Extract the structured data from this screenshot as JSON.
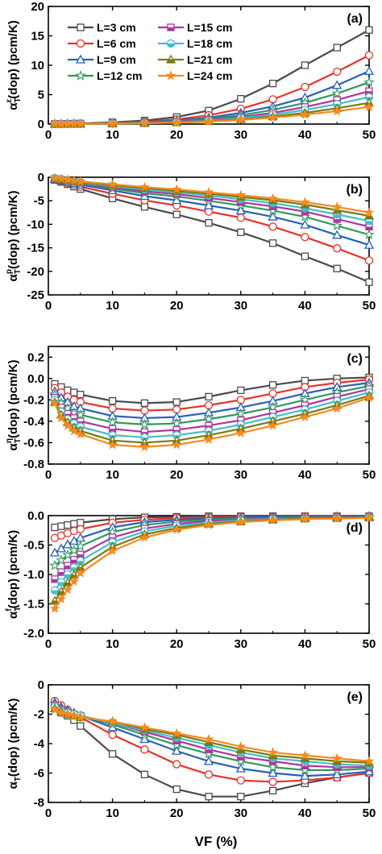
{
  "figure": {
    "xlabel": "VF (%)"
  },
  "series_style": [
    {
      "name": "L=3 cm",
      "color": "#4a4a4a",
      "marker": "square-open"
    },
    {
      "name": "L=6 cm",
      "color": "#e8322b",
      "marker": "circle-open"
    },
    {
      "name": "L=9 cm",
      "color": "#2660b8",
      "marker": "triangle-up-open"
    },
    {
      "name": "L=12 cm",
      "color": "#2f9a5c",
      "marker": "star-open"
    },
    {
      "name": "L=15 cm",
      "color": "#b0359c",
      "marker": "square-half"
    },
    {
      "name": "L=18 cm",
      "color": "#3fbfcf",
      "marker": "circle-half"
    },
    {
      "name": "L=21 cm",
      "color": "#7a7a12",
      "marker": "triangle-up-half"
    },
    {
      "name": "L=24 cm",
      "color": "#f58a1f",
      "marker": "star-half"
    }
  ],
  "chart_data": [
    {
      "type": "line",
      "panel": "(a)",
      "ylabel": {
        "main": "α",
        "sup": "ε",
        "sub": "T",
        "rest": "(dop) (pcm/K)"
      },
      "x": [
        1,
        2,
        3,
        4,
        5,
        10,
        15,
        20,
        25,
        30,
        35,
        40,
        45,
        50
      ],
      "xlim": [
        0,
        50
      ],
      "ylim": [
        0,
        20
      ],
      "xticks": [
        0,
        10,
        20,
        30,
        40,
        50
      ],
      "yticks": [
        0,
        5,
        10,
        15,
        20
      ],
      "legend": "top-left, two columns",
      "series": [
        {
          "name": "L=3 cm",
          "values": [
            0.02,
            0.03,
            0.05,
            0.07,
            0.1,
            0.3,
            0.6,
            1.2,
            2.3,
            4.3,
            6.9,
            10.0,
            13.0,
            16.0
          ]
        },
        {
          "name": "L=6 cm",
          "values": [
            0.02,
            0.03,
            0.04,
            0.06,
            0.08,
            0.2,
            0.4,
            0.8,
            1.5,
            2.6,
            4.2,
            6.3,
            8.9,
            11.7
          ]
        },
        {
          "name": "L=9 cm",
          "values": [
            0.02,
            0.03,
            0.04,
            0.05,
            0.07,
            0.18,
            0.3,
            0.6,
            1.1,
            1.9,
            3.0,
            4.5,
            6.6,
            9.0
          ]
        },
        {
          "name": "L=12 cm",
          "values": [
            0.01,
            0.02,
            0.03,
            0.04,
            0.06,
            0.15,
            0.25,
            0.5,
            0.9,
            1.5,
            2.4,
            3.6,
            5.2,
            7.1
          ]
        },
        {
          "name": "L=15 cm",
          "values": [
            0.01,
            0.02,
            0.03,
            0.04,
            0.05,
            0.12,
            0.2,
            0.4,
            0.7,
            1.2,
            1.9,
            2.9,
            4.1,
            5.6
          ]
        },
        {
          "name": "L=18 cm",
          "values": [
            0.01,
            0.02,
            0.02,
            0.03,
            0.04,
            0.1,
            0.18,
            0.33,
            0.6,
            1.0,
            1.6,
            2.4,
            3.4,
            4.6
          ]
        },
        {
          "name": "L=21 cm",
          "values": [
            0.01,
            0.01,
            0.02,
            0.03,
            0.04,
            0.08,
            0.15,
            0.28,
            0.5,
            0.8,
            1.3,
            1.9,
            2.7,
            3.6
          ]
        },
        {
          "name": "L=24 cm",
          "values": [
            0.01,
            0.01,
            0.02,
            0.02,
            0.03,
            0.07,
            0.13,
            0.23,
            0.4,
            0.7,
            1.1,
            1.6,
            2.2,
            2.9
          ]
        }
      ]
    },
    {
      "type": "line",
      "panel": "(b)",
      "ylabel": {
        "main": "α",
        "sup": "p",
        "sub": "T",
        "rest": "(dop) (pcm/K)"
      },
      "x": [
        1,
        2,
        3,
        4,
        5,
        10,
        15,
        20,
        25,
        30,
        35,
        40,
        45,
        50
      ],
      "xlim": [
        0,
        50
      ],
      "ylim": [
        -25,
        0
      ],
      "xticks": [
        0,
        10,
        20,
        30,
        40,
        50
      ],
      "yticks": [
        0,
        -5,
        -10,
        -15,
        -20,
        -25
      ],
      "series": [
        {
          "name": "L=3 cm",
          "values": [
            -0.6,
            -1.0,
            -1.5,
            -2.0,
            -2.5,
            -4.5,
            -6.3,
            -7.9,
            -9.7,
            -11.7,
            -14.0,
            -16.8,
            -19.4,
            -22.3
          ]
        },
        {
          "name": "L=6 cm",
          "values": [
            -0.5,
            -0.8,
            -1.2,
            -1.6,
            -2.0,
            -3.5,
            -4.9,
            -6.0,
            -7.3,
            -8.6,
            -10.5,
            -12.7,
            -15.1,
            -17.7
          ]
        },
        {
          "name": "L=9 cm",
          "values": [
            -0.4,
            -0.7,
            -1.0,
            -1.3,
            -1.6,
            -2.8,
            -4.0,
            -4.9,
            -6.0,
            -7.1,
            -8.4,
            -10.1,
            -12.3,
            -14.4
          ]
        },
        {
          "name": "L=12 cm",
          "values": [
            -0.3,
            -0.6,
            -0.9,
            -1.1,
            -1.4,
            -2.4,
            -3.4,
            -4.1,
            -5.0,
            -6.0,
            -7.1,
            -8.4,
            -10.3,
            -12.2
          ]
        },
        {
          "name": "L=15 cm",
          "values": [
            -0.3,
            -0.5,
            -0.8,
            -1.0,
            -1.2,
            -2.1,
            -3.0,
            -3.6,
            -4.4,
            -5.3,
            -6.2,
            -7.3,
            -8.9,
            -10.5
          ]
        },
        {
          "name": "L=18 cm",
          "values": [
            -0.2,
            -0.4,
            -0.7,
            -0.9,
            -1.1,
            -1.9,
            -2.6,
            -3.2,
            -3.9,
            -4.7,
            -5.5,
            -6.6,
            -7.9,
            -9.3
          ]
        },
        {
          "name": "L=21 cm",
          "values": [
            -0.2,
            -0.4,
            -0.6,
            -0.8,
            -1.0,
            -1.7,
            -2.3,
            -2.9,
            -3.5,
            -4.2,
            -4.9,
            -5.8,
            -7.0,
            -8.2
          ]
        },
        {
          "name": "L=24 cm",
          "values": [
            -0.2,
            -0.3,
            -0.5,
            -0.7,
            -0.9,
            -1.5,
            -2.1,
            -2.6,
            -3.2,
            -3.8,
            -4.5,
            -5.3,
            -6.3,
            -7.5
          ]
        }
      ]
    },
    {
      "type": "line",
      "panel": "(c)",
      "ylabel": {
        "main": "α",
        "sup": "η",
        "sub": "T",
        "rest": "(dop) (pcm/K)"
      },
      "x": [
        1,
        2,
        3,
        4,
        5,
        10,
        15,
        20,
        25,
        30,
        35,
        40,
        45,
        50
      ],
      "xlim": [
        0,
        50
      ],
      "ylim": [
        -0.8,
        0.3
      ],
      "xticks": [
        0,
        10,
        20,
        30,
        40,
        50
      ],
      "yticks": [
        0.2,
        0.0,
        -0.2,
        -0.4,
        -0.6,
        -0.8
      ],
      "series": [
        {
          "name": "L=3 cm",
          "values": [
            -0.05,
            -0.08,
            -0.11,
            -0.13,
            -0.15,
            -0.21,
            -0.23,
            -0.22,
            -0.17,
            -0.11,
            -0.06,
            -0.02,
            0.0,
            0.01
          ]
        },
        {
          "name": "L=6 cm",
          "values": [
            -0.09,
            -0.13,
            -0.17,
            -0.2,
            -0.22,
            -0.28,
            -0.3,
            -0.29,
            -0.25,
            -0.2,
            -0.14,
            -0.08,
            -0.04,
            -0.01
          ]
        },
        {
          "name": "L=9 cm",
          "values": [
            -0.12,
            -0.18,
            -0.22,
            -0.26,
            -0.28,
            -0.35,
            -0.37,
            -0.36,
            -0.32,
            -0.27,
            -0.21,
            -0.14,
            -0.08,
            -0.04
          ]
        },
        {
          "name": "L=12 cm",
          "values": [
            -0.15,
            -0.23,
            -0.28,
            -0.32,
            -0.34,
            -0.41,
            -0.43,
            -0.42,
            -0.38,
            -0.33,
            -0.27,
            -0.2,
            -0.13,
            -0.07
          ]
        },
        {
          "name": "L=15 cm",
          "values": [
            -0.18,
            -0.27,
            -0.33,
            -0.37,
            -0.4,
            -0.47,
            -0.5,
            -0.48,
            -0.44,
            -0.39,
            -0.32,
            -0.25,
            -0.17,
            -0.1
          ]
        },
        {
          "name": "L=18 cm",
          "values": [
            -0.2,
            -0.31,
            -0.38,
            -0.42,
            -0.45,
            -0.53,
            -0.55,
            -0.53,
            -0.49,
            -0.43,
            -0.36,
            -0.29,
            -0.21,
            -0.13
          ]
        },
        {
          "name": "L=21 cm",
          "values": [
            -0.22,
            -0.34,
            -0.41,
            -0.46,
            -0.49,
            -0.58,
            -0.6,
            -0.58,
            -0.53,
            -0.47,
            -0.4,
            -0.33,
            -0.25,
            -0.16
          ]
        },
        {
          "name": "L=24 cm",
          "values": [
            -0.23,
            -0.37,
            -0.44,
            -0.49,
            -0.52,
            -0.62,
            -0.64,
            -0.62,
            -0.57,
            -0.51,
            -0.44,
            -0.36,
            -0.28,
            -0.18
          ]
        }
      ]
    },
    {
      "type": "line",
      "panel": "(d)",
      "ylabel": {
        "main": "α",
        "sup": "f",
        "sub": "T",
        "rest": "(dop) (pcm/K)"
      },
      "x": [
        1,
        2,
        3,
        4,
        5,
        10,
        15,
        20,
        25,
        30,
        35,
        40,
        45,
        50
      ],
      "xlim": [
        0,
        50
      ],
      "ylim": [
        -2.0,
        0.0
      ],
      "xticks": [
        0,
        10,
        20,
        30,
        40,
        50
      ],
      "yticks": [
        0.0,
        -0.5,
        -1.0,
        -1.5,
        -2.0
      ],
      "series": [
        {
          "name": "L=3 cm",
          "values": [
            -0.2,
            -0.18,
            -0.16,
            -0.14,
            -0.12,
            -0.06,
            -0.03,
            -0.02,
            -0.01,
            -0.01,
            -0.01,
            -0.01,
            -0.01,
            -0.01
          ]
        },
        {
          "name": "L=6 cm",
          "values": [
            -0.38,
            -0.34,
            -0.3,
            -0.26,
            -0.23,
            -0.12,
            -0.07,
            -0.04,
            -0.03,
            -0.02,
            -0.02,
            -0.01,
            -0.01,
            -0.01
          ]
        },
        {
          "name": "L=9 cm",
          "values": [
            -0.63,
            -0.56,
            -0.49,
            -0.43,
            -0.38,
            -0.2,
            -0.11,
            -0.07,
            -0.05,
            -0.03,
            -0.02,
            -0.02,
            -0.02,
            -0.01
          ]
        },
        {
          "name": "L=12 cm",
          "values": [
            -0.85,
            -0.76,
            -0.67,
            -0.59,
            -0.52,
            -0.28,
            -0.16,
            -0.1,
            -0.07,
            -0.05,
            -0.04,
            -0.03,
            -0.02,
            -0.02
          ]
        },
        {
          "name": "L=15 cm",
          "values": [
            -1.08,
            -0.96,
            -0.85,
            -0.75,
            -0.66,
            -0.37,
            -0.22,
            -0.14,
            -0.09,
            -0.07,
            -0.05,
            -0.04,
            -0.03,
            -0.02
          ]
        },
        {
          "name": "L=18 cm",
          "values": [
            -1.27,
            -1.13,
            -1.0,
            -0.88,
            -0.77,
            -0.45,
            -0.27,
            -0.17,
            -0.12,
            -0.08,
            -0.06,
            -0.05,
            -0.04,
            -0.03
          ]
        },
        {
          "name": "L=21 cm",
          "values": [
            -1.45,
            -1.29,
            -1.14,
            -1.01,
            -0.88,
            -0.53,
            -0.32,
            -0.21,
            -0.14,
            -0.1,
            -0.07,
            -0.05,
            -0.04,
            -0.03
          ]
        },
        {
          "name": "L=24 cm",
          "values": [
            -1.58,
            -1.42,
            -1.26,
            -1.12,
            -0.98,
            -0.6,
            -0.37,
            -0.24,
            -0.16,
            -0.11,
            -0.08,
            -0.06,
            -0.05,
            -0.04
          ]
        }
      ]
    },
    {
      "type": "line",
      "panel": "(e)",
      "ylabel": {
        "main": "α",
        "sup": "",
        "sub": "T",
        "rest": "(dop) (pcm/K)"
      },
      "x": [
        1,
        2,
        3,
        4,
        5,
        10,
        15,
        20,
        25,
        30,
        35,
        40,
        45,
        50
      ],
      "xlim": [
        0,
        50
      ],
      "ylim": [
        -8,
        0
      ],
      "xticks": [
        0,
        10,
        20,
        30,
        40,
        50
      ],
      "yticks": [
        0,
        -2,
        -4,
        -6,
        -8
      ],
      "series": [
        {
          "name": "L=3 cm",
          "values": [
            -1.6,
            -1.9,
            -2.1,
            -2.4,
            -2.8,
            -4.7,
            -6.1,
            -7.1,
            -7.6,
            -7.6,
            -7.2,
            -6.7,
            -6.3,
            -6.0
          ]
        },
        {
          "name": "L=6 cm",
          "values": [
            -1.1,
            -1.4,
            -1.7,
            -2.0,
            -2.2,
            -3.4,
            -4.4,
            -5.4,
            -6.1,
            -6.5,
            -6.6,
            -6.5,
            -6.3,
            -6.0
          ]
        },
        {
          "name": "L=9 cm",
          "values": [
            -1.2,
            -1.5,
            -1.7,
            -1.9,
            -2.1,
            -2.9,
            -3.7,
            -4.5,
            -5.2,
            -5.7,
            -6.0,
            -6.2,
            -6.1,
            -5.9
          ]
        },
        {
          "name": "L=12 cm",
          "values": [
            -1.3,
            -1.6,
            -1.8,
            -2.0,
            -2.1,
            -2.7,
            -3.4,
            -4.1,
            -4.7,
            -5.2,
            -5.6,
            -5.8,
            -5.8,
            -5.7
          ]
        },
        {
          "name": "L=15 cm",
          "values": [
            -1.4,
            -1.7,
            -1.9,
            -2.0,
            -2.1,
            -2.6,
            -3.2,
            -3.8,
            -4.4,
            -4.9,
            -5.2,
            -5.5,
            -5.6,
            -5.6
          ]
        },
        {
          "name": "L=18 cm",
          "values": [
            -1.5,
            -1.8,
            -1.9,
            -2.0,
            -2.1,
            -2.6,
            -3.1,
            -3.6,
            -4.1,
            -4.6,
            -5.0,
            -5.2,
            -5.4,
            -5.5
          ]
        },
        {
          "name": "L=21 cm",
          "values": [
            -1.6,
            -1.8,
            -2.0,
            -2.1,
            -2.2,
            -2.5,
            -3.0,
            -3.4,
            -3.9,
            -4.4,
            -4.8,
            -5.0,
            -5.2,
            -5.3
          ]
        },
        {
          "name": "L=24 cm",
          "values": [
            -1.7,
            -1.9,
            -2.0,
            -2.1,
            -2.2,
            -2.5,
            -2.9,
            -3.3,
            -3.7,
            -4.2,
            -4.6,
            -4.8,
            -5.0,
            -5.2
          ]
        }
      ]
    }
  ]
}
